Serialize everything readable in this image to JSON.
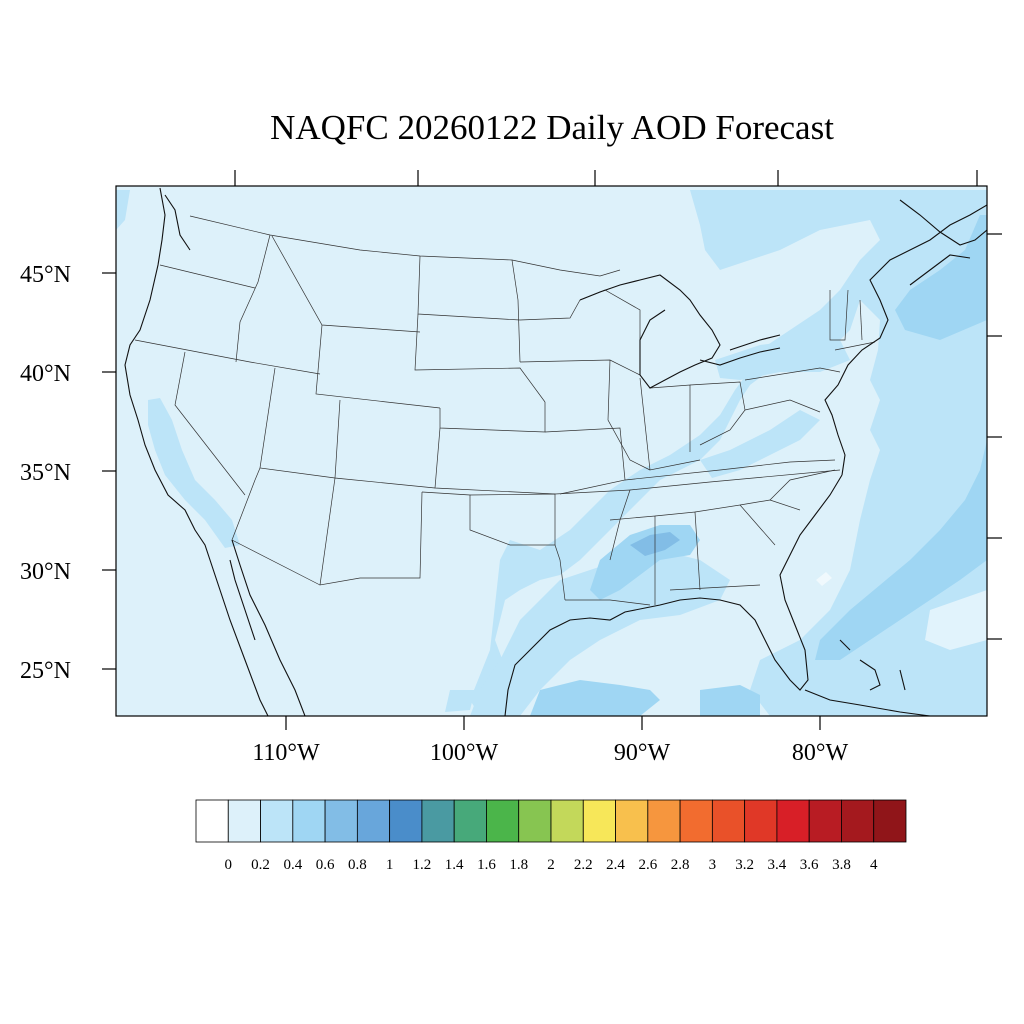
{
  "map": {
    "title": "NAQFC 20260122 Daily AOD Forecast",
    "region": "Contiguous United States",
    "background_aod_color": "#DDF1FA",
    "latitude_labels": [
      "45°N",
      "40°N",
      "35°N",
      "30°N",
      "25°N"
    ],
    "longitude_labels": [
      "110°W",
      "100°W",
      "90°W",
      "80°W"
    ]
  },
  "colorbar": {
    "labels": [
      "0",
      "0.2",
      "0.4",
      "0.6",
      "0.8",
      "1",
      "1.2",
      "1.4",
      "1.6",
      "1.8",
      "2",
      "2.2",
      "2.4",
      "2.6",
      "2.8",
      "3",
      "3.2",
      "3.4",
      "3.6",
      "3.8",
      "4"
    ],
    "colors": [
      "#FFFFFF",
      "#DDF1FA",
      "#BCE4F8",
      "#9FD6F3",
      "#82BDE6",
      "#68A6DB",
      "#4A8DCA",
      "#4A9AA2",
      "#47A97A",
      "#4BB54A",
      "#87C551",
      "#C3D85A",
      "#F7E759",
      "#F8C04D",
      "#F6963E",
      "#F26C2F",
      "#E95129",
      "#E03827",
      "#D81F27",
      "#B81C23",
      "#A4191E",
      "#901519"
    ]
  }
}
